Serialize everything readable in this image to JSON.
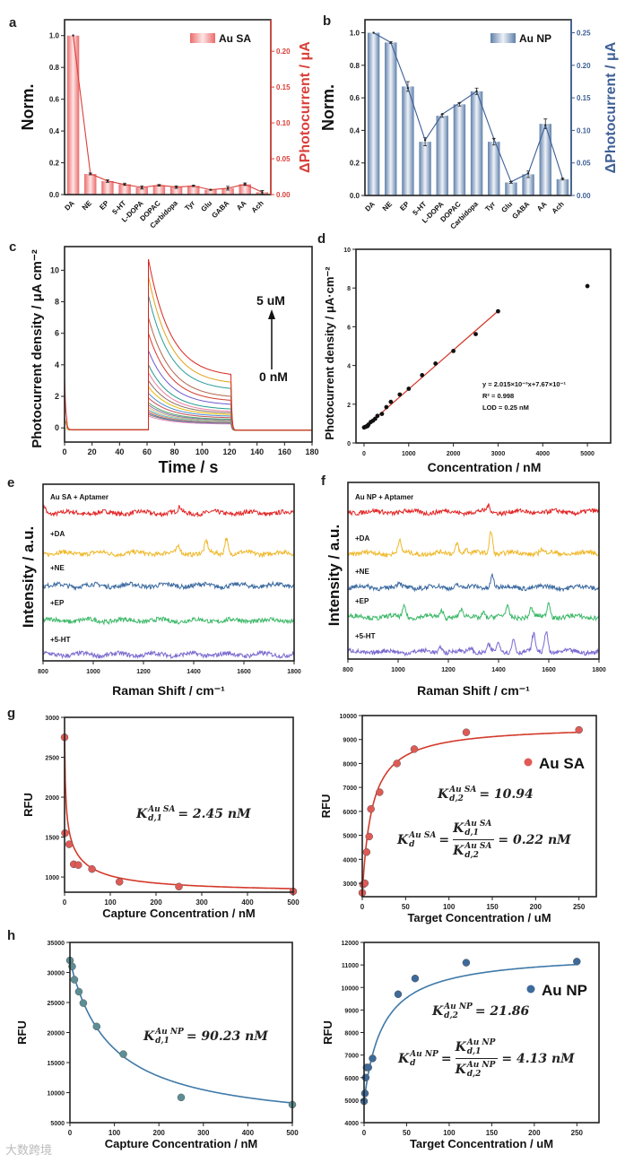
{
  "panel_labels": {
    "a": "a",
    "b": "b",
    "c": "c",
    "d": "d",
    "e": "e",
    "f": "f",
    "g": "g",
    "h": "h"
  },
  "watermark": "大数跨境",
  "colors": {
    "au_sa": "#d9403a",
    "au_np": "#3d5f95",
    "fit_red": "#d33a2c",
    "fit_blue": "#3f79a8",
    "point_h": "#5b8f95"
  },
  "chart_data": [
    {
      "id": "a",
      "type": "bar",
      "categories": [
        "DA",
        "NE",
        "EP",
        "5-HT",
        "L-DOPA",
        "DOPAC",
        "Carbidopa",
        "Tyr",
        "Glu",
        "GABA",
        "AA",
        "Ach"
      ],
      "series": [
        {
          "name": "Au SA",
          "values": [
            1.0,
            0.13,
            0.085,
            0.065,
            0.045,
            0.058,
            0.047,
            0.055,
            0.03,
            0.04,
            0.065,
            0.015
          ],
          "errors": [
            0,
            0.006,
            0.008,
            0.007,
            0.01,
            0.005,
            0.008,
            0.005,
            0.002,
            0.012,
            0.008,
            0.01
          ]
        },
        {
          "name": "ΔPhotocurrent line",
          "values": [
            0.222,
            0.029,
            0.019,
            0.014,
            0.01,
            0.013,
            0.0105,
            0.012,
            0.0067,
            0.0089,
            0.0144,
            0.0033
          ]
        }
      ],
      "ylabel": "Norm.",
      "y2label": "ΔPhotocurrent / μA",
      "ylim": [
        0,
        1.1
      ],
      "y2lim": [
        0,
        0.244
      ],
      "yticks": [
        "0.0",
        "0.2",
        "0.4",
        "0.6",
        "0.8",
        "1.0"
      ],
      "y2ticks": [
        "0.00",
        "0.05",
        "0.10",
        "0.15",
        "0.20"
      ],
      "legend": "Au SA",
      "legend_position": "top-right"
    },
    {
      "id": "b",
      "type": "bar",
      "categories": [
        "DA",
        "NE",
        "EP",
        "5-HT",
        "L-DOPA",
        "DOPAC",
        "Carbidopa",
        "Tyr",
        "Glu",
        "GABA",
        "AA",
        "Ach"
      ],
      "series": [
        {
          "name": "Au NP",
          "values": [
            1.0,
            0.94,
            0.67,
            0.33,
            0.49,
            0.56,
            0.64,
            0.33,
            0.08,
            0.13,
            0.44,
            0.1
          ],
          "errors": [
            0,
            0.005,
            0.03,
            0.025,
            0.01,
            0.01,
            0.02,
            0.02,
            0.005,
            0.02,
            0.03,
            0.005
          ]
        },
        {
          "name": "ΔPhotocurrent line",
          "values": [
            0.25,
            0.235,
            0.165,
            0.085,
            0.125,
            0.142,
            0.16,
            0.087,
            0.021,
            0.034,
            0.108,
            0.026
          ]
        }
      ],
      "ylabel": "Norm.",
      "y2label": "ΔPhotocurrent / μA",
      "ylim": [
        0,
        1.08
      ],
      "y2lim": [
        0,
        0.27
      ],
      "yticks": [
        "0.0",
        "0.2",
        "0.4",
        "0.6",
        "0.8",
        "1.0"
      ],
      "y2ticks": [
        "0.00",
        "0.05",
        "0.10",
        "0.15",
        "0.20",
        "0.25"
      ],
      "legend": "Au NP",
      "legend_position": "top-right"
    },
    {
      "id": "c",
      "type": "line",
      "xlabel": "Time / s",
      "ylabel": "Photocurrent density / μA cm⁻²",
      "xlim": [
        0,
        180
      ],
      "ylim": [
        -0.9,
        11.5
      ],
      "xticks": [
        "0",
        "20",
        "40",
        "60",
        "80",
        "100",
        "120",
        "140",
        "160",
        "180"
      ],
      "yticks": [
        "0",
        "2",
        "4",
        "6",
        "8",
        "10"
      ],
      "light_on": [
        61,
        121
      ],
      "peaks": [
        10.7,
        9.6,
        8.4,
        7.0,
        6.0,
        4.9,
        4.0,
        3.5,
        3.0,
        2.6,
        2.2,
        1.9,
        1.6,
        1.45,
        1.3,
        1.15,
        1.05,
        0.95,
        0.85,
        0.75
      ],
      "ends": [
        3.4,
        2.9,
        2.5,
        2.0,
        1.75,
        1.5,
        1.2,
        1.05,
        0.95,
        0.85,
        0.75,
        0.65,
        0.55,
        0.5,
        0.45,
        0.4,
        0.35,
        0.3,
        0.3,
        0.25
      ],
      "palette": [
        "#d7261e",
        "#e0a21a",
        "#2a9d9a",
        "#b2624a",
        "#d33a2c",
        "#6a5acd",
        "#1f9a8a",
        "#e97ca0",
        "#8d6e63",
        "#e6b800",
        "#4a8fd6",
        "#c44e52",
        "#55a868",
        "#8172b2",
        "#ccb974",
        "#64b5cd",
        "#dd8452",
        "#4c72b0",
        "#937860",
        "#da8bc3"
      ],
      "annotation_top": "5 uM",
      "annotation_bottom": "0 nM"
    },
    {
      "id": "d",
      "type": "scatter",
      "xlabel": "Concentration / nM",
      "ylabel": "Photocurrent density / μA·cm⁻²",
      "xlim": [
        -180,
        5520
      ],
      "ylim": [
        0,
        10
      ],
      "xticks": [
        "0",
        "1000",
        "2000",
        "3000",
        "4000",
        "5000"
      ],
      "yticks": [
        "0",
        "2",
        "4",
        "6",
        "8",
        "10"
      ],
      "x": [
        0,
        20,
        40,
        60,
        80,
        100,
        150,
        200,
        250,
        300,
        400,
        500,
        600,
        800,
        1000,
        1300,
        1600,
        2000,
        2500,
        3000,
        5000
      ],
      "y": [
        0.8,
        0.82,
        0.84,
        0.86,
        0.88,
        0.95,
        1.08,
        1.15,
        1.25,
        1.4,
        1.5,
        1.85,
        2.12,
        2.5,
        2.8,
        3.5,
        4.1,
        4.75,
        5.62,
        6.8,
        8.1
      ],
      "fit": {
        "slope": 0.002015,
        "intercept": 0.767,
        "range": [
          0,
          3000
        ]
      },
      "annotations": [
        "y = 2.015×10⁻³x+7.67×10⁻¹",
        "R² = 0.998",
        "LOD = 0.25 nM"
      ]
    },
    {
      "id": "e",
      "type": "line",
      "xlabel": "Raman Shift / cm⁻¹",
      "ylabel": "Intensity / a.u.",
      "xlim": [
        800,
        1800
      ],
      "xticks": [
        "800",
        "1000",
        "1200",
        "1400",
        "1600",
        "1800"
      ],
      "traces": [
        {
          "label": "Au SA + Aptamer",
          "color": "#e32626",
          "peaks": [
            [
              805,
              0.9
            ],
            [
              1345,
              0.6
            ]
          ]
        },
        {
          "label": "+DA",
          "color": "#f0b82a",
          "peaks": [
            [
              1340,
              0.9
            ],
            [
              1450,
              1.4
            ],
            [
              1530,
              2.0
            ]
          ]
        },
        {
          "label": "+NE",
          "color": "#3b6aa0",
          "peaks": []
        },
        {
          "label": "+EP",
          "color": "#3cb868",
          "peaks": []
        },
        {
          "label": "+5-HT",
          "color": "#7a6ad0",
          "peaks": []
        }
      ]
    },
    {
      "id": "f",
      "type": "line",
      "xlabel": "Raman Shift / cm⁻¹",
      "ylabel": "Intensity / a.u.",
      "xlim": [
        800,
        1800
      ],
      "xticks": [
        "800",
        "1000",
        "1200",
        "1400",
        "1600",
        "1800"
      ],
      "traces": [
        {
          "label": "Au NP + Aptamer",
          "color": "#e32626",
          "peaks": [
            [
              1360,
              0.7
            ]
          ]
        },
        {
          "label": "+DA",
          "color": "#f0b82a",
          "peaks": [
            [
              1005,
              1.5
            ],
            [
              1235,
              1.4
            ],
            [
              1270,
              0.6
            ],
            [
              1370,
              2.8
            ],
            [
              1570,
              0.5
            ]
          ]
        },
        {
          "label": "+NE",
          "color": "#3b6aa0",
          "peaks": [
            [
              1005,
              0.5
            ],
            [
              1235,
              0.5
            ],
            [
              1375,
              1.6
            ]
          ]
        },
        {
          "label": "+EP",
          "color": "#3cb868",
          "peaks": [
            [
              1025,
              1.4
            ],
            [
              1175,
              0.9
            ],
            [
              1250,
              0.8
            ],
            [
              1340,
              0.7
            ],
            [
              1435,
              1.2
            ],
            [
              1530,
              1.0
            ],
            [
              1600,
              1.9
            ]
          ]
        },
        {
          "label": "+5-HT",
          "color": "#7a6ad0",
          "peaks": [
            [
              1170,
              0.8
            ],
            [
              1290,
              0.6
            ],
            [
              1360,
              0.8
            ],
            [
              1400,
              1.0
            ],
            [
              1460,
              1.8
            ],
            [
              1540,
              2.1
            ],
            [
              1590,
              2.8
            ]
          ]
        }
      ]
    },
    {
      "id": "g1",
      "type": "scatter",
      "xlabel": "Capture Concentration / nM",
      "ylabel": "RFU",
      "xlim": [
        0,
        500
      ],
      "ylim": [
        810,
        3000
      ],
      "xticks": [
        "0",
        "100",
        "200",
        "300",
        "400",
        "500"
      ],
      "yticks": [
        "1000",
        "1500",
        "2000",
        "2500",
        "3000"
      ],
      "x": [
        0,
        1,
        10,
        20,
        30,
        60,
        120,
        250,
        500
      ],
      "y": [
        2750,
        1550,
        1410,
        1160,
        1150,
        1100,
        940,
        880,
        820
      ],
      "annotation": {
        "K": "K",
        "sup": "Au SA",
        "sub": "d,1",
        "rest": "= 2.45 nM"
      }
    },
    {
      "id": "g2",
      "type": "scatter",
      "xlabel": "Target Concentration / uM",
      "ylabel": "RFU",
      "xlim": [
        0,
        270
      ],
      "ylim": [
        2440,
        10000
      ],
      "xticks": [
        "0",
        "50",
        "100",
        "150",
        "200",
        "250"
      ],
      "yticks": [
        "3000",
        "4000",
        "5000",
        "6000",
        "7000",
        "8000",
        "9000",
        "10000"
      ],
      "x": [
        0,
        1,
        3,
        5,
        8,
        10,
        20,
        40,
        60,
        120,
        250
      ],
      "y": [
        2600,
        2950,
        3000,
        4300,
        4950,
        6100,
        6800,
        8000,
        8600,
        9300,
        9400
      ],
      "legend": "Au SA",
      "legend_position": "right",
      "annotation": {
        "K": "K",
        "sup": "Au SA",
        "sub": "d,2",
        "rest": "= 10.94"
      },
      "annotation2": {
        "K": "K",
        "sup": "Au SA",
        "sub": "d",
        "eq": "=",
        "num_sub": "d,1",
        "den_sub": "d,2",
        "rest": "= 0.22 nM"
      }
    },
    {
      "id": "h1",
      "type": "scatter",
      "xlabel": "Capture Concentration / nM",
      "ylabel": "RFU",
      "xlim": [
        0,
        500
      ],
      "ylim": [
        5000,
        35000
      ],
      "xticks": [
        "0",
        "100",
        "200",
        "300",
        "400",
        "500"
      ],
      "yticks": [
        "5000",
        "10000",
        "15000",
        "20000",
        "25000",
        "30000",
        "35000"
      ],
      "x": [
        0,
        5,
        10,
        20,
        30,
        60,
        120,
        250,
        500
      ],
      "y": [
        32000,
        31000,
        28800,
        26800,
        24900,
        21000,
        16400,
        9200,
        8000
      ],
      "annotation": {
        "K": "K",
        "sup": "Au NP",
        "sub": "d,1",
        "rest": "= 90.23 nM"
      }
    },
    {
      "id": "h2",
      "type": "scatter",
      "xlabel": "Target Concentration / uM",
      "ylabel": "RFU",
      "xlim": [
        0,
        276
      ],
      "ylim": [
        4000,
        12000
      ],
      "xticks": [
        "0",
        "50",
        "100",
        "150",
        "200",
        "250"
      ],
      "yticks": [
        "4000",
        "5000",
        "6000",
        "7000",
        "8000",
        "9000",
        "10000",
        "11000",
        "12000"
      ],
      "x": [
        0,
        1,
        2,
        3,
        5,
        10,
        40,
        60,
        120,
        250
      ],
      "y": [
        4950,
        5300,
        6000,
        6450,
        6450,
        6850,
        9700,
        10400,
        11100,
        11150
      ],
      "legend": "Au NP",
      "legend_position": "right",
      "annotation": {
        "K": "K",
        "sup": "Au NP",
        "sub": "d,2",
        "rest": "= 21.86"
      },
      "annotation2": {
        "K": "K",
        "sup": "Au NP",
        "sub": "d",
        "eq": "=",
        "num_sub": "d,1",
        "den_sub": "d,2",
        "rest": "= 4.13 nM"
      }
    }
  ]
}
